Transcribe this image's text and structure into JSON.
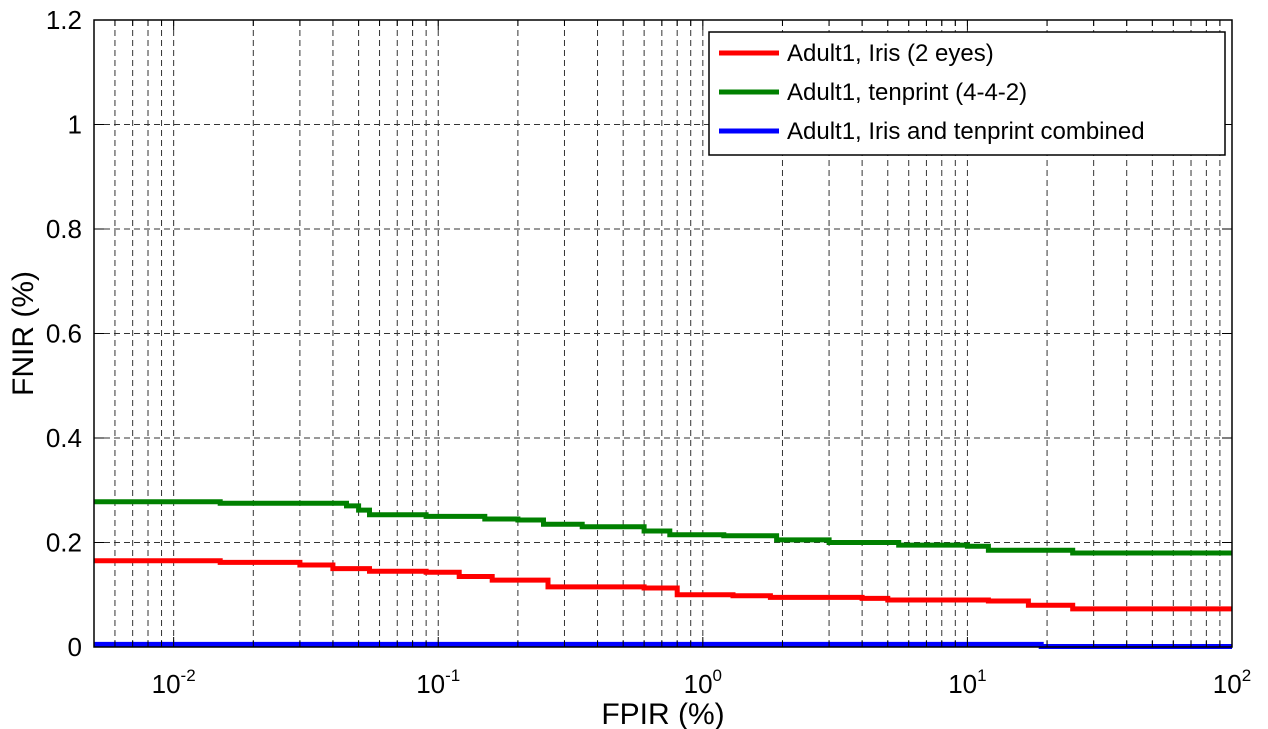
{
  "chart_data": {
    "type": "line",
    "title": "",
    "xlabel": "FPIR (%)",
    "ylabel": "FNIR (%)",
    "xscale": "log",
    "xlim": [
      0.005,
      100
    ],
    "ylim": [
      0,
      1.2
    ],
    "grid": true,
    "legend_position": "top-right",
    "x_ticks": [
      {
        "base": "10",
        "exp": "-2",
        "value": 0.01
      },
      {
        "base": "10",
        "exp": "-1",
        "value": 0.1
      },
      {
        "base": "10",
        "exp": "0",
        "value": 1
      },
      {
        "base": "10",
        "exp": "1",
        "value": 10
      },
      {
        "base": "10",
        "exp": "2",
        "value": 100
      }
    ],
    "y_ticks": [
      {
        "label": "0",
        "value": 0
      },
      {
        "label": "0.2",
        "value": 0.2
      },
      {
        "label": "0.4",
        "value": 0.4
      },
      {
        "label": "0.6",
        "value": 0.6
      },
      {
        "label": "0.8",
        "value": 0.8
      },
      {
        "label": "1",
        "value": 1.0
      },
      {
        "label": "1.2",
        "value": 1.2
      }
    ],
    "series": [
      {
        "name": "Adult1, Iris (2 eyes)",
        "color": "#ff0000",
        "x": [
          0.005,
          0.015,
          0.03,
          0.04,
          0.055,
          0.09,
          0.12,
          0.16,
          0.26,
          0.6,
          0.8,
          1.3,
          1.8,
          4.0,
          5.0,
          12,
          17,
          25,
          100
        ],
        "y": [
          0.165,
          0.162,
          0.157,
          0.15,
          0.145,
          0.143,
          0.135,
          0.128,
          0.115,
          0.113,
          0.1,
          0.098,
          0.095,
          0.093,
          0.09,
          0.088,
          0.08,
          0.073,
          0.073
        ]
      },
      {
        "name": "Adult1, tenprint (4-4-2)",
        "color": "#008000",
        "x": [
          0.005,
          0.015,
          0.045,
          0.05,
          0.055,
          0.09,
          0.15,
          0.2,
          0.25,
          0.35,
          0.6,
          0.75,
          1.2,
          1.9,
          3.0,
          5.5,
          10,
          12,
          25,
          100
        ],
        "y": [
          0.278,
          0.275,
          0.27,
          0.262,
          0.253,
          0.25,
          0.245,
          0.243,
          0.235,
          0.23,
          0.222,
          0.215,
          0.213,
          0.205,
          0.2,
          0.195,
          0.193,
          0.185,
          0.18,
          0.18
        ]
      },
      {
        "name": "Adult1, Iris and tenprint combined",
        "color": "#0000ff",
        "x": [
          0.005,
          18,
          19,
          100
        ],
        "y": [
          0.005,
          0.005,
          0.001,
          0.001
        ]
      }
    ]
  }
}
